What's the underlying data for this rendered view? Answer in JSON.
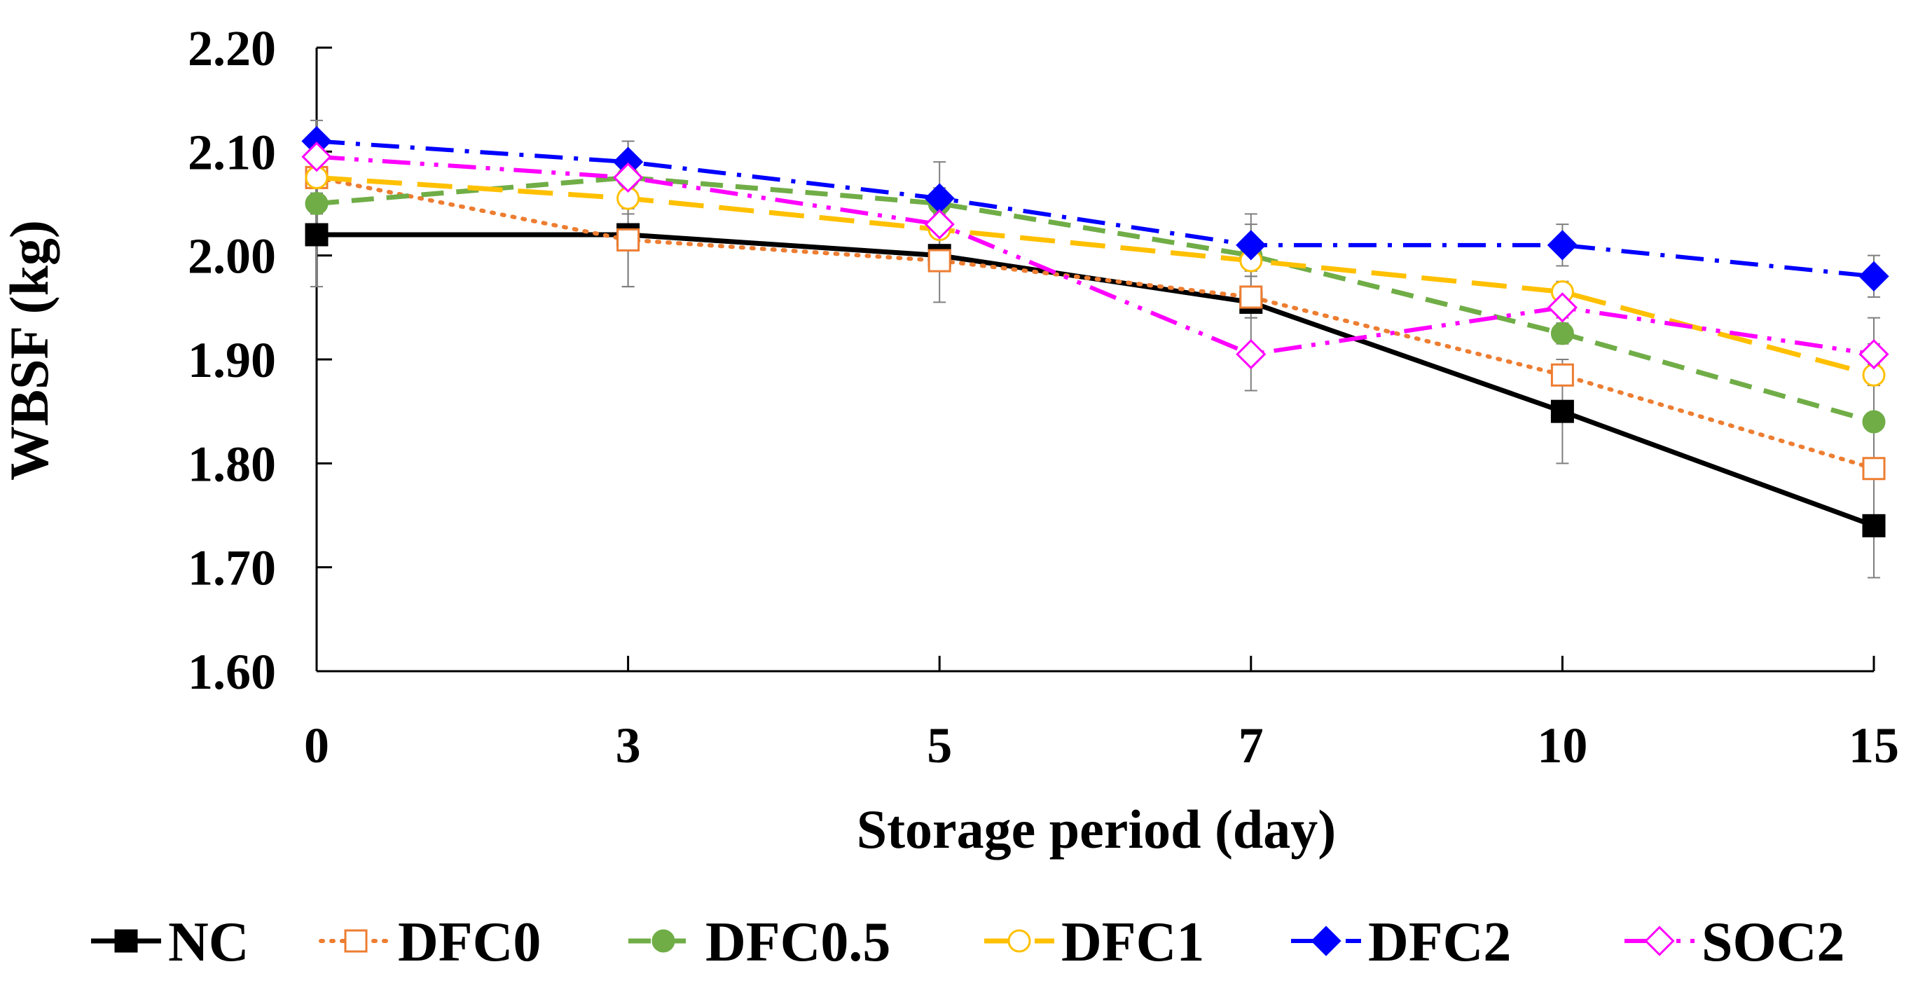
{
  "chart_data": {
    "type": "line",
    "title": "",
    "xlabel": "Storage period (day)",
    "ylabel": "WBSF (kg)",
    "categories": [
      "0",
      "3",
      "5",
      "7",
      "10",
      "15"
    ],
    "ylim": [
      1.6,
      2.2
    ],
    "yticks": [
      "1.60",
      "1.70",
      "1.80",
      "1.90",
      "2.00",
      "2.10",
      "2.20"
    ],
    "grid": false,
    "legend_position": "bottom",
    "series": [
      {
        "name": "NC",
        "color": "#000000",
        "dash": "solid",
        "marker": "square-filled",
        "values": [
          2.02,
          2.02,
          2.0,
          1.955,
          1.85,
          1.74
        ],
        "errors": [
          0.05,
          0.05,
          0.01,
          0.01,
          0.05,
          0.05
        ]
      },
      {
        "name": "DFC0",
        "color": "#ED7D31",
        "dash": "dotted",
        "marker": "square-open",
        "values": [
          2.075,
          2.015,
          1.995,
          1.96,
          1.885,
          1.795
        ],
        "errors": [
          0.01,
          0.045,
          0.04,
          0.02,
          0.01,
          0.01
        ]
      },
      {
        "name": "DFC0.5",
        "color": "#70AD47",
        "dash": "dashed",
        "marker": "circle-filled",
        "values": [
          2.05,
          2.075,
          2.05,
          2.0,
          1.925,
          1.84
        ],
        "errors": [
          0.01,
          0.035,
          0.04,
          0.03,
          0.01,
          0.1
        ]
      },
      {
        "name": "DFC1",
        "color": "#FFC000",
        "dash": "longdash",
        "marker": "circle-open",
        "values": [
          2.075,
          2.055,
          2.025,
          1.995,
          1.965,
          1.885
        ],
        "errors": [
          0.01,
          0.01,
          0.03,
          0.01,
          0.01,
          0.01
        ]
      },
      {
        "name": "DFC2",
        "color": "#0000FF",
        "dash": "dashdot",
        "marker": "diamond-filled",
        "values": [
          2.11,
          2.09,
          2.055,
          2.01,
          2.01,
          1.98
        ],
        "errors": [
          0.02,
          0.02,
          0.01,
          0.03,
          0.02,
          0.02
        ]
      },
      {
        "name": "SOC2",
        "color": "#FF00FF",
        "dash": "dashdotdot",
        "marker": "diamond-open",
        "values": [
          2.095,
          2.075,
          2.03,
          1.905,
          1.95,
          1.905
        ],
        "errors": [
          0.01,
          0.01,
          0.01,
          0.035,
          0.01,
          0.01
        ]
      }
    ]
  }
}
